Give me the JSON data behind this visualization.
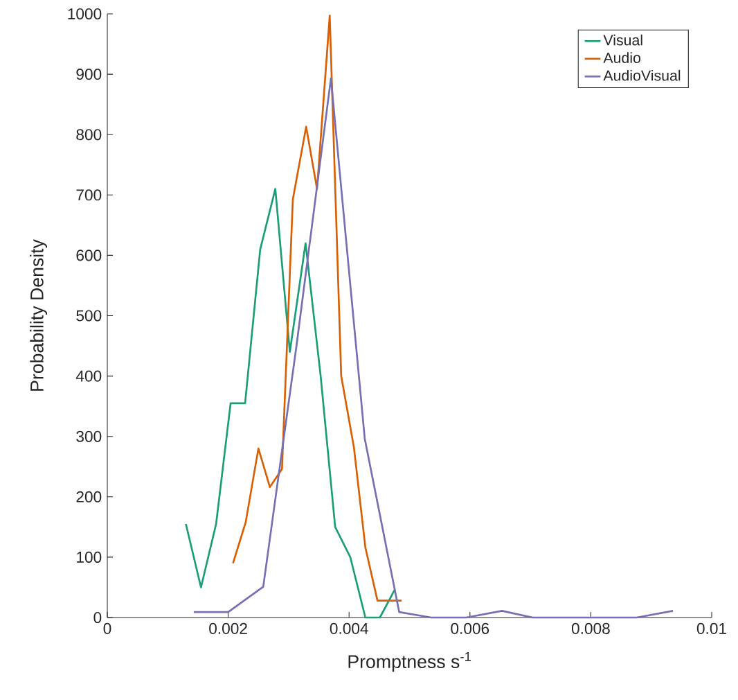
{
  "chart_data": {
    "type": "line",
    "xlabel": "Promptness s$^{-1}$",
    "ylabel": "Probability Density",
    "xlim": [
      0,
      0.01
    ],
    "ylim": [
      0,
      1000
    ],
    "xticks": [
      0,
      0.002,
      0.004,
      0.006,
      0.008,
      0.01
    ],
    "yticks": [
      0,
      100,
      200,
      300,
      400,
      500,
      600,
      700,
      800,
      900,
      1000
    ],
    "grid": false,
    "legend": "top right",
    "marker": "none",
    "line_style": "solid",
    "series": [
      {
        "name": "Visual",
        "color": "#1b9e77",
        "x": [
          0.0013,
          0.00155,
          0.0018,
          0.00204,
          0.00228,
          0.00253,
          0.00278,
          0.00302,
          0.00328,
          0.00353,
          0.00377,
          0.00402,
          0.00427,
          0.00451,
          0.00476
        ],
        "values": [
          155,
          50,
          155,
          355,
          355,
          610,
          710,
          440,
          620,
          400,
          150,
          100,
          0,
          0,
          47
        ]
      },
      {
        "name": "Audio",
        "color": "#d95f02",
        "x": [
          0.00208,
          0.00229,
          0.0025,
          0.00269,
          0.00289,
          0.00307,
          0.00329,
          0.00347,
          0.00368,
          0.00387,
          0.00408,
          0.00427,
          0.00447,
          0.00487
        ],
        "values": [
          90,
          158,
          280,
          216,
          246,
          693,
          813,
          710,
          997,
          400,
          282,
          116,
          28,
          28
        ]
      },
      {
        "name": "AudioVisual",
        "color": "#7570b3",
        "x": [
          0.00143,
          0.002,
          0.00258,
          0.00313,
          0.0037,
          0.00426,
          0.00483,
          0.00536,
          0.00594,
          0.00653,
          0.00704,
          0.00876,
          0.00936
        ],
        "values": [
          9,
          9,
          51,
          450,
          893,
          296,
          9,
          0,
          0,
          11,
          0,
          0,
          11
        ]
      }
    ]
  }
}
